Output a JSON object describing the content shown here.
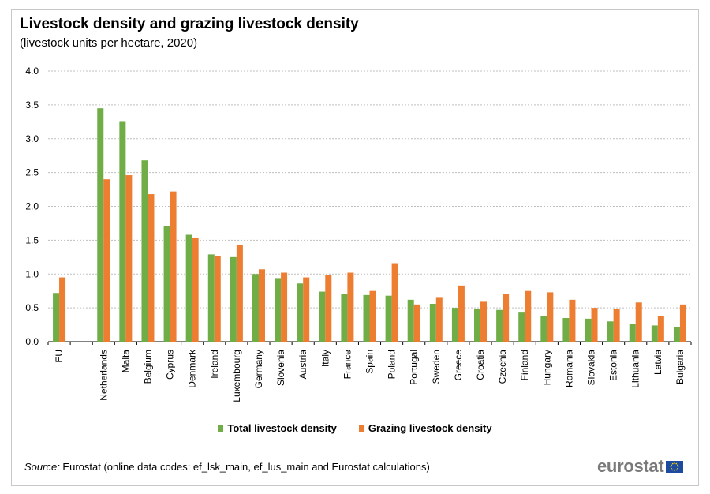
{
  "header": {
    "title": "Livestock density and grazing livestock density",
    "subtitle": "(livestock units per hectare, 2020)"
  },
  "footer": {
    "source_label": "Source:",
    "source_text": " Eurostat (online data codes: ef_lsk_main, ef_lus_main and Eurostat calculations)",
    "logo_text": "eurostat"
  },
  "colors": {
    "total": "#70ad47",
    "grazing": "#ed7d31",
    "grid": "#bfbfbf",
    "axis": "#000000"
  },
  "chart_data": {
    "type": "bar",
    "ylim": [
      0,
      4.0
    ],
    "yticks": [
      "0.0",
      "0.5",
      "1.0",
      "1.5",
      "2.0",
      "2.5",
      "3.0",
      "3.5",
      "4.0"
    ],
    "ytick_values": [
      0,
      0.5,
      1.0,
      1.5,
      2.0,
      2.5,
      3.0,
      3.5,
      4.0
    ],
    "grid": true,
    "legend_position": "bottom",
    "categories": [
      "EU",
      "",
      "Netherlands",
      "Malta",
      "Belgium",
      "Cyprus",
      "Denmark",
      "Ireland",
      "Luxembourg",
      "Germany",
      "Slovenia",
      "Austria",
      "Italy",
      "France",
      "Spain",
      "Poland",
      "Portugal",
      "Sweden",
      "Greece",
      "Croatia",
      "Czechia",
      "Finland",
      "Hungary",
      "Romania",
      "Slovakia",
      "Estonia",
      "Lithuania",
      "Latvia",
      "Bulgaria"
    ],
    "series": [
      {
        "name": "Total livestock density",
        "values": [
          0.72,
          null,
          3.45,
          3.26,
          2.68,
          1.71,
          1.58,
          1.29,
          1.25,
          1.0,
          0.94,
          0.86,
          0.74,
          0.7,
          0.69,
          0.68,
          0.62,
          0.56,
          0.5,
          0.49,
          0.47,
          0.43,
          0.38,
          0.35,
          0.34,
          0.3,
          0.26,
          0.24,
          0.22
        ]
      },
      {
        "name": "Grazing livestock density",
        "values": [
          0.95,
          null,
          2.4,
          2.46,
          2.18,
          2.22,
          1.54,
          1.26,
          1.43,
          1.07,
          1.02,
          0.95,
          0.99,
          1.02,
          0.75,
          1.16,
          0.55,
          0.66,
          0.83,
          0.59,
          0.7,
          0.75,
          0.73,
          0.62,
          0.5,
          0.48,
          0.58,
          0.38,
          0.55
        ]
      }
    ]
  }
}
